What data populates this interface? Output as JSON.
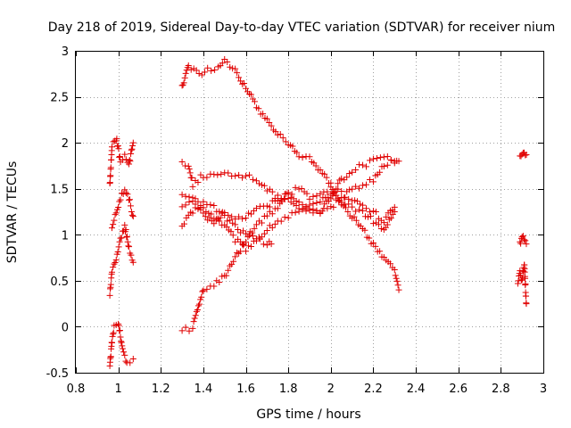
{
  "chart_data": {
    "type": "scatter",
    "title": "Day 218 of 2019, Sidereal Day-to-day VTEC variation (SDTVAR) for receiver nium",
    "xlabel": "GPS time / hours",
    "ylabel": "SDTVAR / TECUs",
    "xlim": [
      0.8,
      3.0
    ],
    "ylim": [
      -0.5,
      3.0
    ],
    "x_ticks": [
      0.8,
      1.0,
      1.2,
      1.4,
      1.6,
      1.8,
      2.0,
      2.2,
      2.4,
      2.6,
      2.8,
      3.0
    ],
    "x_tick_labels": [
      "0.8",
      "1",
      "1.2",
      "1.4",
      "1.6",
      "1.8",
      "2",
      "2.2",
      "2.4",
      "2.6",
      "2.8",
      "3"
    ],
    "y_ticks": [
      -0.5,
      0.0,
      0.5,
      1.0,
      1.5,
      2.0,
      2.5,
      3.0
    ],
    "y_tick_labels": [
      "-0.5",
      "0",
      "0.5",
      "1",
      "1.5",
      "2",
      "2.5",
      "3"
    ],
    "grid": true,
    "marker": "+",
    "color": "#e00000",
    "series_keypoints": [
      {
        "name": "early-low",
        "points": [
          [
            0.96,
            -0.45
          ],
          [
            0.97,
            -0.15
          ],
          [
            0.98,
            0.0
          ],
          [
            1.0,
            0.05
          ],
          [
            1.02,
            -0.25
          ],
          [
            1.04,
            -0.4
          ],
          [
            1.07,
            -0.35
          ]
        ]
      },
      {
        "name": "early-mid",
        "points": [
          [
            0.96,
            0.35
          ],
          [
            0.97,
            0.6
          ],
          [
            0.99,
            0.75
          ],
          [
            1.01,
            0.95
          ],
          [
            1.03,
            1.1
          ],
          [
            1.05,
            0.85
          ],
          [
            1.07,
            0.7
          ]
        ]
      },
      {
        "name": "early-high",
        "points": [
          [
            0.96,
            1.55
          ],
          [
            0.97,
            1.95
          ],
          [
            0.99,
            2.05
          ],
          [
            1.01,
            1.8
          ],
          [
            1.03,
            1.85
          ],
          [
            1.05,
            1.75
          ],
          [
            1.07,
            2.0
          ]
        ]
      },
      {
        "name": "early-mid2",
        "points": [
          [
            0.97,
            1.1
          ],
          [
            0.99,
            1.25
          ],
          [
            1.01,
            1.4
          ],
          [
            1.03,
            1.5
          ],
          [
            1.05,
            1.4
          ],
          [
            1.07,
            1.2
          ]
        ]
      },
      {
        "name": "main-descending",
        "points": [
          [
            1.3,
            2.6
          ],
          [
            1.33,
            2.85
          ],
          [
            1.38,
            2.75
          ],
          [
            1.42,
            2.8
          ],
          [
            1.47,
            2.8
          ],
          [
            1.5,
            2.9
          ],
          [
            1.55,
            2.8
          ],
          [
            1.6,
            2.6
          ],
          [
            1.65,
            2.4
          ],
          [
            1.7,
            2.25
          ],
          [
            1.75,
            2.1
          ],
          [
            1.8,
            2.0
          ],
          [
            1.85,
            1.85
          ],
          [
            1.9,
            1.85
          ],
          [
            1.95,
            1.7
          ],
          [
            2.0,
            1.55
          ],
          [
            2.05,
            1.35
          ],
          [
            2.1,
            1.2
          ],
          [
            2.15,
            1.05
          ],
          [
            2.2,
            0.9
          ],
          [
            2.25,
            0.75
          ],
          [
            2.3,
            0.6
          ],
          [
            2.32,
            0.4
          ]
        ]
      },
      {
        "name": "main-ascending",
        "points": [
          [
            1.3,
            -0.05
          ],
          [
            1.35,
            0.0
          ],
          [
            1.4,
            0.4
          ],
          [
            1.45,
            0.45
          ],
          [
            1.5,
            0.55
          ],
          [
            1.55,
            0.75
          ],
          [
            1.6,
            0.95
          ],
          [
            1.65,
            1.1
          ],
          [
            1.7,
            1.2
          ],
          [
            1.75,
            1.3
          ],
          [
            1.8,
            1.45
          ],
          [
            1.85,
            1.35
          ],
          [
            1.9,
            1.3
          ],
          [
            1.95,
            1.25
          ],
          [
            2.0,
            1.3
          ],
          [
            2.05,
            1.4
          ],
          [
            2.1,
            1.5
          ],
          [
            2.15,
            1.55
          ],
          [
            2.2,
            1.6
          ],
          [
            2.25,
            1.75
          ],
          [
            2.3,
            1.8
          ],
          [
            2.32,
            1.8
          ]
        ]
      },
      {
        "name": "main-upper-mid",
        "points": [
          [
            1.3,
            1.8
          ],
          [
            1.33,
            1.75
          ],
          [
            1.35,
            1.55
          ],
          [
            1.4,
            1.65
          ],
          [
            1.45,
            1.65
          ],
          [
            1.5,
            1.65
          ],
          [
            1.55,
            1.65
          ],
          [
            1.6,
            1.65
          ],
          [
            1.65,
            1.6
          ],
          [
            1.7,
            1.5
          ],
          [
            1.75,
            1.4
          ],
          [
            1.8,
            1.4
          ],
          [
            1.85,
            1.3
          ],
          [
            1.9,
            1.25
          ],
          [
            1.95,
            1.25
          ],
          [
            2.0,
            1.4
          ],
          [
            2.05,
            1.6
          ],
          [
            2.1,
            1.7
          ],
          [
            2.15,
            1.75
          ],
          [
            2.2,
            1.8
          ],
          [
            2.25,
            1.85
          ],
          [
            2.3,
            1.8
          ]
        ]
      },
      {
        "name": "main-hump",
        "points": [
          [
            1.3,
            1.3
          ],
          [
            1.35,
            1.35
          ],
          [
            1.4,
            1.25
          ],
          [
            1.45,
            1.1
          ],
          [
            1.5,
            1.25
          ],
          [
            1.55,
            1.2
          ],
          [
            1.6,
            1.2
          ],
          [
            1.65,
            1.3
          ],
          [
            1.7,
            1.3
          ],
          [
            1.75,
            1.4
          ],
          [
            1.8,
            1.45
          ],
          [
            1.85,
            1.5
          ],
          [
            1.9,
            1.4
          ],
          [
            1.95,
            1.45
          ],
          [
            2.0,
            1.5
          ],
          [
            2.05,
            1.45
          ],
          [
            2.1,
            1.4
          ],
          [
            2.15,
            1.3
          ],
          [
            2.2,
            1.25
          ],
          [
            2.25,
            1.15
          ],
          [
            2.3,
            1.3
          ]
        ]
      },
      {
        "name": "main-lower-mid",
        "points": [
          [
            1.3,
            1.1
          ],
          [
            1.35,
            1.25
          ],
          [
            1.4,
            1.35
          ],
          [
            1.45,
            1.3
          ],
          [
            1.5,
            1.2
          ],
          [
            1.55,
            1.1
          ],
          [
            1.6,
            1.0
          ],
          [
            1.65,
            0.95
          ],
          [
            1.7,
            0.9
          ],
          [
            1.72,
            0.9
          ]
        ]
      },
      {
        "name": "main-cross",
        "points": [
          [
            1.3,
            1.45
          ],
          [
            1.35,
            1.4
          ],
          [
            1.4,
            1.3
          ],
          [
            1.45,
            1.2
          ],
          [
            1.5,
            1.1
          ],
          [
            1.55,
            0.95
          ],
          [
            1.6,
            0.85
          ],
          [
            1.65,
            0.95
          ],
          [
            1.7,
            1.05
          ],
          [
            1.75,
            1.15
          ],
          [
            1.8,
            1.2
          ],
          [
            1.85,
            1.25
          ],
          [
            1.9,
            1.3
          ],
          [
            1.95,
            1.35
          ],
          [
            2.0,
            1.45
          ],
          [
            2.05,
            1.35
          ],
          [
            2.1,
            1.3
          ],
          [
            2.15,
            1.25
          ],
          [
            2.2,
            1.15
          ],
          [
            2.25,
            1.05
          ],
          [
            2.3,
            1.25
          ]
        ]
      },
      {
        "name": "late-upper",
        "points": [
          [
            2.89,
            1.85
          ],
          [
            2.9,
            1.88
          ],
          [
            2.91,
            1.9
          ],
          [
            2.92,
            1.87
          ]
        ]
      },
      {
        "name": "late-mid",
        "points": [
          [
            2.89,
            0.9
          ],
          [
            2.9,
            1.0
          ],
          [
            2.91,
            0.95
          ],
          [
            2.92,
            0.9
          ]
        ]
      },
      {
        "name": "late-lower",
        "points": [
          [
            2.88,
            0.45
          ],
          [
            2.89,
            0.6
          ],
          [
            2.9,
            0.5
          ],
          [
            2.91,
            0.7
          ],
          [
            2.92,
            0.25
          ]
        ]
      }
    ]
  }
}
